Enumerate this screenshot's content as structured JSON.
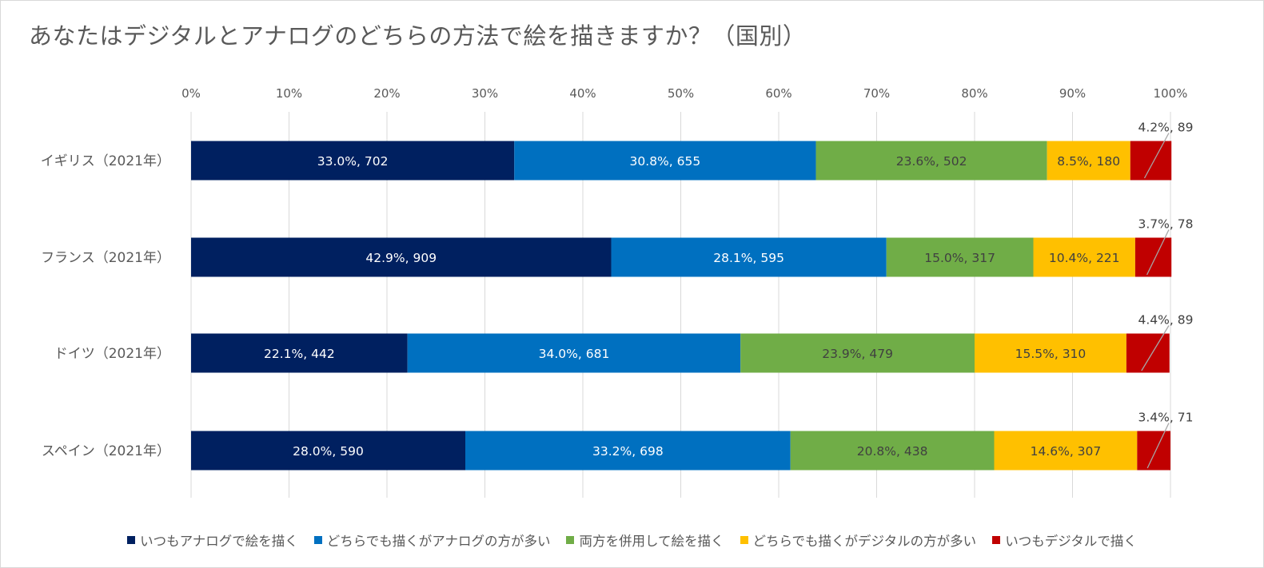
{
  "chart_data": {
    "type": "bar",
    "orientation": "horizontal",
    "stacked": "percent",
    "title": "あなたはデジタルとアナログのどちらの方法で絵を描きますか？（国別）",
    "categories": [
      "イギリス（2021年）",
      "フランス（2021年）",
      "ドイツ（2021年）",
      "スペイン（2021年）"
    ],
    "xlim": [
      0,
      100
    ],
    "xticks": [
      "0%",
      "10%",
      "20%",
      "30%",
      "40%",
      "50%",
      "60%",
      "70%",
      "80%",
      "90%",
      "100%"
    ],
    "grid": true,
    "legend_position": "bottom",
    "series": [
      {
        "name": "いつもアナログで絵を描く",
        "color": "#002060",
        "label_color": "#ffffff",
        "values": [
          33.0,
          42.9,
          22.1,
          28.0
        ],
        "labels": [
          "33.0%, 702",
          "42.9%, 909",
          "22.1%, 442",
          "28.0%, 590"
        ]
      },
      {
        "name": "どちらでも描くがアナログの方が多い",
        "color": "#0070c0",
        "label_color": "#ffffff",
        "values": [
          30.8,
          28.1,
          34.0,
          33.2
        ],
        "labels": [
          "30.8%, 655",
          "28.1%, 595",
          "34.0%, 681",
          "33.2%, 698"
        ]
      },
      {
        "name": "両方を併用して絵を描く",
        "color": "#70ad47",
        "label_color": "#404040",
        "values": [
          23.6,
          15.0,
          23.9,
          20.8
        ],
        "labels": [
          "23.6%, 502",
          "15.0%, 317",
          "23.9%, 479",
          "20.8%, 438"
        ]
      },
      {
        "name": "どちらでも描くがデジタルの方が多い",
        "color": "#ffc000",
        "label_color": "#404040",
        "values": [
          8.5,
          10.4,
          15.5,
          14.6
        ],
        "labels": [
          "8.5%, 180",
          "10.4%, 221",
          "15.5%, 310",
          "14.6%, 307"
        ]
      },
      {
        "name": "いつもデジタルで描く",
        "color": "#c00000",
        "label_color": "#404040",
        "values": [
          4.2,
          3.7,
          4.4,
          3.4
        ],
        "labels": [
          "4.2%, 89",
          "3.7%, 78",
          "4.4%, 89",
          "3.4%, 71"
        ],
        "label_placement": "callout-above"
      }
    ]
  }
}
